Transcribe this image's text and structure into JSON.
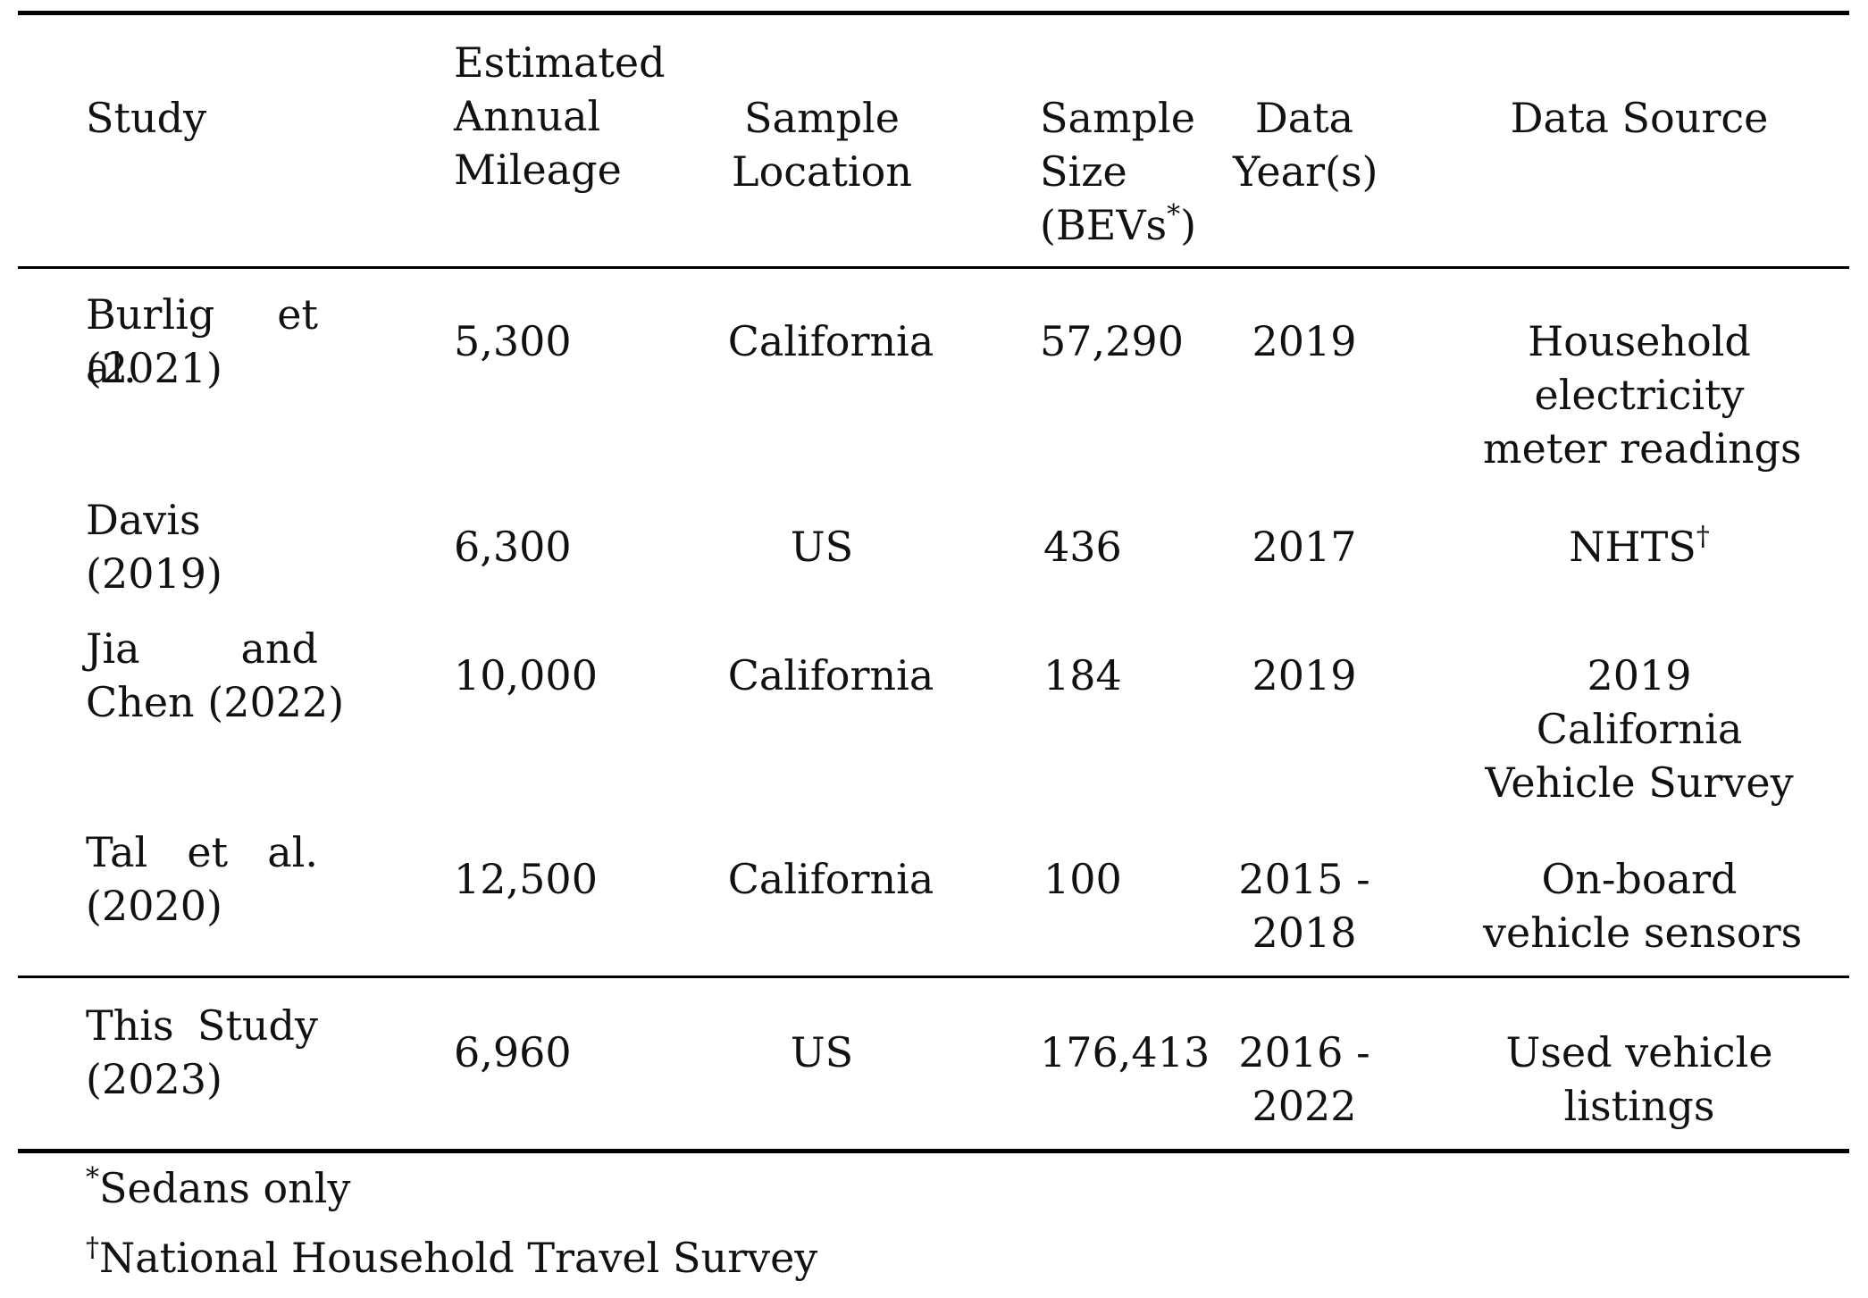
{
  "table": {
    "headers": {
      "study": "Study",
      "mileage": [
        "Estimated",
        "Annual",
        "Mileage"
      ],
      "location": [
        "Sample",
        "Location"
      ],
      "size": [
        "Sample",
        "Size",
        "(BEVs",
        "*",
        ")"
      ],
      "year": [
        "Data",
        "Year(s)"
      ],
      "source": "Data Source"
    },
    "rows": [
      {
        "study": [
          "Burlig et al.",
          "(2021)"
        ],
        "mileage": "5,300",
        "location": "California",
        "size": "57,290",
        "year": [
          "2019"
        ],
        "source": [
          "Household",
          "electricity",
          "meter readings"
        ]
      },
      {
        "study": [
          "Davis",
          "(2019)"
        ],
        "mileage": "6,300",
        "location": "US",
        "size": "436",
        "year": [
          "2017"
        ],
        "source": [
          "NHTS"
        ],
        "source_mark": "†"
      },
      {
        "study": [
          "Jia and",
          "Chen (2022)"
        ],
        "mileage": "10,000",
        "location": "California",
        "size": "184",
        "year": [
          "2019"
        ],
        "source": [
          "2019",
          "California",
          "Vehicle Survey"
        ]
      },
      {
        "study": [
          "Tal et al.",
          "(2020)"
        ],
        "mileage": "12,500",
        "location": "California",
        "size": "100",
        "year": [
          "2015 -",
          "2018"
        ],
        "source": [
          "On-board",
          "vehicle sensors"
        ]
      },
      {
        "study": [
          "This Study",
          "(2023)"
        ],
        "mileage": "6,960",
        "location": "US",
        "size": "176,413",
        "year": [
          "2016 -",
          "2022"
        ],
        "source": [
          "Used vehicle",
          "listings"
        ]
      }
    ]
  },
  "footnotes": [
    {
      "mark": "*",
      "text": "Sedans only"
    },
    {
      "mark": "†",
      "text": "National Household Travel Survey"
    }
  ]
}
